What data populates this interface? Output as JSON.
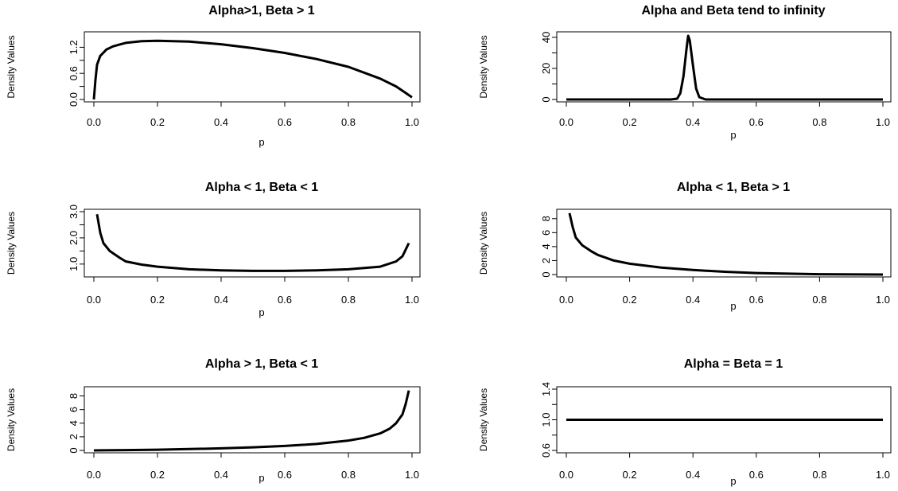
{
  "chart_data": [
    {
      "type": "line",
      "title": "Alpha>1, Beta > 1",
      "xlabel": "p",
      "ylabel": "Density Values",
      "xlim": [
        0,
        1
      ],
      "ylim": [
        0,
        1.5
      ],
      "xticks": [
        "0.0",
        "0.2",
        "0.4",
        "0.6",
        "0.8",
        "1.0"
      ],
      "yticks": [
        "0.0",
        "0.6",
        "1.2"
      ],
      "ytick_values": [
        0,
        0.3,
        0.6,
        0.9,
        1.2
      ],
      "x": [
        0.0,
        0.005,
        0.01,
        0.02,
        0.04,
        0.06,
        0.08,
        0.1,
        0.15,
        0.2,
        0.3,
        0.4,
        0.5,
        0.6,
        0.7,
        0.8,
        0.9,
        0.95,
        0.98,
        1.0
      ],
      "y": [
        0.0,
        0.45,
        0.8,
        1.0,
        1.15,
        1.22,
        1.26,
        1.3,
        1.34,
        1.35,
        1.33,
        1.27,
        1.18,
        1.07,
        0.93,
        0.75,
        0.48,
        0.3,
        0.15,
        0.05
      ]
    },
    {
      "type": "line",
      "title": "Alpha and Beta tend to infinity",
      "xlabel": "p",
      "ylabel": "Density Values",
      "xlim": [
        0,
        1
      ],
      "ylim": [
        0,
        42
      ],
      "xticks": [
        "0.0",
        "0.2",
        "0.4",
        "0.6",
        "0.8",
        "1.0"
      ],
      "yticks": [
        "0",
        "20",
        "40"
      ],
      "ytick_values": [
        0,
        10,
        20,
        30,
        40
      ],
      "x": [
        0.0,
        0.33,
        0.35,
        0.36,
        0.37,
        0.38,
        0.385,
        0.39,
        0.4,
        0.41,
        0.42,
        0.44,
        1.0
      ],
      "y": [
        0.0,
        0.0,
        0.5,
        4,
        15,
        33,
        41,
        38,
        22,
        7,
        1.5,
        0.0,
        0.0
      ]
    },
    {
      "type": "line",
      "title": "Alpha < 1, Beta < 1",
      "xlabel": "p",
      "ylabel": "Density Values",
      "xlim": [
        0,
        1
      ],
      "ylim": [
        0.6,
        3.0
      ],
      "xticks": [
        "0.0",
        "0.2",
        "0.4",
        "0.6",
        "0.8",
        "1.0"
      ],
      "yticks": [
        "1.0",
        "2.0",
        "3.0"
      ],
      "ytick_values": [
        1.0,
        1.5,
        2.0,
        2.5,
        3.0
      ],
      "x": [
        0.01,
        0.02,
        0.03,
        0.05,
        0.08,
        0.1,
        0.15,
        0.2,
        0.3,
        0.4,
        0.5,
        0.6,
        0.7,
        0.8,
        0.9,
        0.95,
        0.97,
        0.99
      ],
      "y": [
        2.9,
        2.2,
        1.8,
        1.5,
        1.25,
        1.1,
        0.98,
        0.9,
        0.8,
        0.76,
        0.74,
        0.74,
        0.76,
        0.8,
        0.9,
        1.1,
        1.3,
        1.8
      ]
    },
    {
      "type": "line",
      "title": "Alpha < 1, Beta > 1",
      "xlabel": "p",
      "ylabel": "Density Values",
      "xlim": [
        0,
        1
      ],
      "ylim": [
        0,
        9
      ],
      "xticks": [
        "0.0",
        "0.2",
        "0.4",
        "0.6",
        "0.8",
        "1.0"
      ],
      "yticks": [
        "0",
        "2",
        "4",
        "6",
        "8"
      ],
      "ytick_values": [
        0,
        2,
        4,
        6,
        8
      ],
      "x": [
        0.01,
        0.02,
        0.03,
        0.05,
        0.08,
        0.1,
        0.15,
        0.2,
        0.3,
        0.4,
        0.5,
        0.6,
        0.8,
        1.0
      ],
      "y": [
        8.8,
        6.8,
        5.3,
        4.2,
        3.3,
        2.8,
        2.0,
        1.55,
        1.0,
        0.65,
        0.4,
        0.22,
        0.05,
        0.0
      ]
    },
    {
      "type": "line",
      "title": "Alpha > 1, Beta < 1",
      "xlabel": "p",
      "ylabel": "Density Values",
      "xlim": [
        0,
        1
      ],
      "ylim": [
        0,
        9
      ],
      "xticks": [
        "0.0",
        "0.2",
        "0.4",
        "0.6",
        "0.8",
        "1.0"
      ],
      "yticks": [
        "0",
        "2",
        "4",
        "6",
        "8"
      ],
      "ytick_values": [
        0,
        2,
        4,
        6,
        8
      ],
      "x": [
        0.0,
        0.1,
        0.2,
        0.3,
        0.4,
        0.5,
        0.6,
        0.7,
        0.8,
        0.85,
        0.9,
        0.93,
        0.95,
        0.97,
        0.98,
        0.99
      ],
      "y": [
        0.0,
        0.05,
        0.1,
        0.2,
        0.3,
        0.45,
        0.65,
        0.95,
        1.45,
        1.85,
        2.5,
        3.2,
        4.0,
        5.3,
        6.8,
        8.8
      ]
    },
    {
      "type": "line",
      "title": "Alpha = Beta = 1",
      "xlabel": "p",
      "ylabel": "Density Values",
      "xlim": [
        0,
        1
      ],
      "ylim": [
        0.6,
        1.4
      ],
      "xticks": [
        "0.0",
        "0.2",
        "0.4",
        "0.6",
        "0.8",
        "1.0"
      ],
      "yticks": [
        "0.6",
        "1.0",
        "1.4"
      ],
      "ytick_values": [
        0.6,
        0.8,
        1.0,
        1.2,
        1.4
      ],
      "x": [
        0.0,
        1.0
      ],
      "y": [
        1.0,
        1.0
      ]
    }
  ]
}
